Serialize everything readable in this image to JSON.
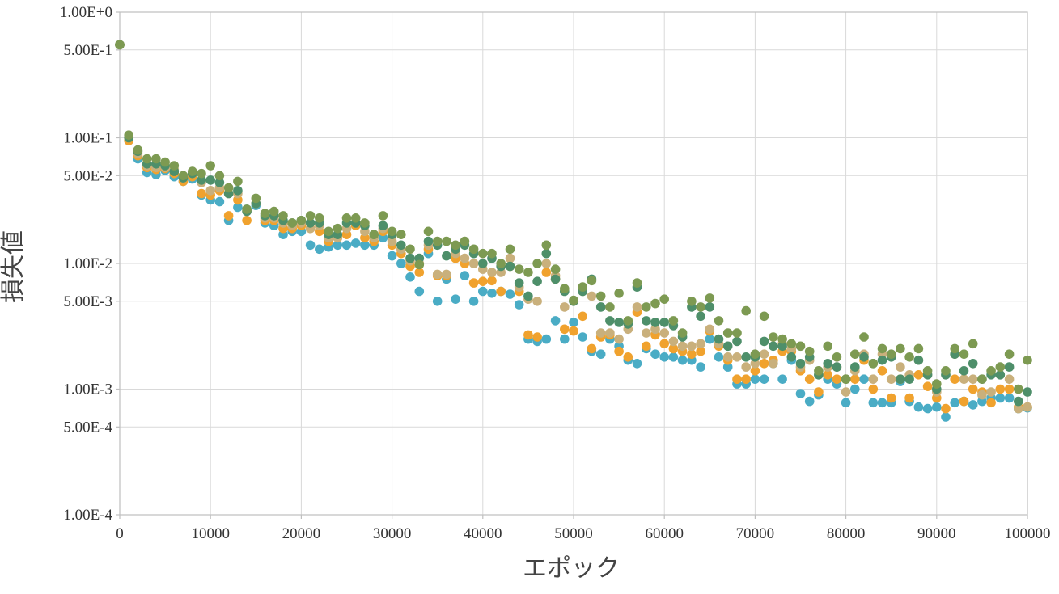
{
  "chart_data": {
    "type": "scatter",
    "title": "",
    "xlabel": "エポック",
    "ylabel": "損失値",
    "x_scale": "linear",
    "y_scale": "log",
    "xlim": [
      0,
      100000
    ],
    "ylim": [
      0.0001,
      1
    ],
    "grid": true,
    "legend": "none",
    "x_ticks": [
      0,
      10000,
      20000,
      30000,
      40000,
      50000,
      60000,
      70000,
      80000,
      90000,
      100000
    ],
    "x_tick_labels": [
      "0",
      "10000",
      "20000",
      "30000",
      "40000",
      "50000",
      "60000",
      "70000",
      "80000",
      "90000",
      "100000"
    ],
    "y_ticks": [
      1,
      0.5,
      0.1,
      0.05,
      0.01,
      0.005,
      0.001,
      0.0005,
      0.0001
    ],
    "y_tick_labels": [
      "1.00E+0",
      "5.00E-1",
      "1.00E-1",
      "5.00E-2",
      "1.00E-2",
      "5.00E-3",
      "1.00E-3",
      "5.00E-4",
      "1.00E-4"
    ],
    "series": [
      {
        "color": "#4aacc5",
        "x": [
          0,
          1000,
          2000,
          3000,
          4000,
          5000,
          6000,
          7000,
          8000,
          9000,
          10000,
          11000,
          12000,
          13000,
          14000,
          15000,
          16000,
          17000,
          18000,
          19000,
          20000,
          21000,
          22000,
          23000,
          24000,
          25000,
          26000,
          27000,
          28000,
          29000,
          30000,
          31000,
          32000,
          33000,
          34000,
          35000,
          36000,
          37000,
          38000,
          39000,
          40000,
          41000,
          42000,
          43000,
          44000,
          45000,
          46000,
          47000,
          48000,
          49000,
          50000,
          51000,
          52000,
          53000,
          54000,
          55000,
          56000,
          57000,
          58000,
          59000,
          60000,
          61000,
          62000,
          63000,
          64000,
          65000,
          66000,
          67000,
          68000,
          69000,
          70000,
          71000,
          72000,
          73000,
          74000,
          75000,
          76000,
          77000,
          78000,
          79000,
          80000,
          81000,
          82000,
          83000,
          84000,
          85000,
          86000,
          87000,
          88000,
          89000,
          90000,
          91000,
          92000,
          93000,
          94000,
          95000,
          96000,
          97000,
          98000,
          99000,
          100000
        ],
        "y": [
          0.55,
          0.095,
          0.068,
          0.053,
          0.051,
          0.055,
          0.049,
          0.045,
          0.047,
          0.035,
          0.032,
          0.031,
          0.022,
          0.028,
          0.027,
          0.029,
          0.021,
          0.02,
          0.017,
          0.018,
          0.018,
          0.014,
          0.013,
          0.0135,
          0.014,
          0.014,
          0.0145,
          0.014,
          0.014,
          0.016,
          0.0115,
          0.01,
          0.0078,
          0.006,
          0.012,
          0.005,
          0.0075,
          0.0052,
          0.008,
          0.005,
          0.006,
          0.0058,
          0.006,
          0.0057,
          0.0047,
          0.0025,
          0.0024,
          0.0025,
          0.0035,
          0.0025,
          0.0034,
          0.0026,
          0.002,
          0.0019,
          0.0025,
          0.0022,
          0.0017,
          0.0016,
          0.0021,
          0.0019,
          0.0018,
          0.0018,
          0.0017,
          0.0017,
          0.0015,
          0.0025,
          0.0018,
          0.0015,
          0.0011,
          0.0011,
          0.0012,
          0.0012,
          0.0016,
          0.0012,
          0.0017,
          0.00092,
          0.0008,
          0.0009,
          0.0012,
          0.0011,
          0.00078,
          0.001,
          0.0012,
          0.00078,
          0.00078,
          0.00078,
          0.00115,
          0.0008,
          0.00072,
          0.0007,
          0.00072,
          0.0006,
          0.00078,
          0.0008,
          0.00075,
          0.0008,
          0.00085,
          0.00085,
          0.00085,
          0.0007,
          0.00071
        ]
      },
      {
        "color": "#f0a22e",
        "x": [
          0,
          1000,
          2000,
          3000,
          4000,
          5000,
          6000,
          7000,
          8000,
          9000,
          10000,
          11000,
          12000,
          13000,
          14000,
          15000,
          16000,
          17000,
          18000,
          19000,
          20000,
          21000,
          22000,
          23000,
          24000,
          25000,
          26000,
          27000,
          28000,
          29000,
          30000,
          31000,
          32000,
          33000,
          34000,
          35000,
          36000,
          37000,
          38000,
          39000,
          40000,
          41000,
          42000,
          43000,
          44000,
          45000,
          46000,
          47000,
          48000,
          49000,
          50000,
          51000,
          52000,
          53000,
          54000,
          55000,
          56000,
          57000,
          58000,
          59000,
          60000,
          61000,
          62000,
          63000,
          64000,
          65000,
          66000,
          67000,
          68000,
          69000,
          70000,
          71000,
          72000,
          73000,
          74000,
          75000,
          76000,
          77000,
          78000,
          79000,
          80000,
          81000,
          82000,
          83000,
          84000,
          85000,
          86000,
          87000,
          88000,
          89000,
          90000,
          91000,
          92000,
          93000,
          94000,
          95000,
          96000,
          97000,
          98000,
          99000,
          100000
        ],
        "y": [
          0.55,
          0.095,
          0.072,
          0.058,
          0.056,
          0.057,
          0.052,
          0.045,
          0.049,
          0.036,
          0.035,
          0.038,
          0.024,
          0.032,
          0.022,
          0.03,
          0.022,
          0.022,
          0.019,
          0.019,
          0.02,
          0.019,
          0.018,
          0.015,
          0.016,
          0.017,
          0.02,
          0.016,
          0.015,
          0.018,
          0.014,
          0.012,
          0.0095,
          0.0085,
          0.013,
          0.008,
          0.008,
          0.011,
          0.01,
          0.007,
          0.0072,
          0.0073,
          0.006,
          0.0095,
          0.006,
          0.0027,
          0.0026,
          0.0085,
          0.0075,
          0.003,
          0.0029,
          0.0038,
          0.0021,
          0.0026,
          0.0027,
          0.002,
          0.0018,
          0.0041,
          0.0022,
          0.0027,
          0.0023,
          0.0021,
          0.002,
          0.0019,
          0.002,
          0.0029,
          0.0022,
          0.0017,
          0.0012,
          0.0012,
          0.0014,
          0.0016,
          0.0017,
          0.002,
          0.002,
          0.0014,
          0.0012,
          0.00095,
          0.0013,
          0.0012,
          0.0012,
          0.0012,
          0.0017,
          0.001,
          0.0014,
          0.00085,
          0.0012,
          0.00085,
          0.0013,
          0.00105,
          0.00085,
          0.0007,
          0.0012,
          0.0008,
          0.001,
          0.00095,
          0.00078,
          0.001,
          0.001,
          0.00072,
          0.00072
        ]
      },
      {
        "color": "#c9b07c",
        "x": [
          0,
          1000,
          2000,
          3000,
          4000,
          5000,
          6000,
          7000,
          8000,
          9000,
          10000,
          11000,
          12000,
          13000,
          14000,
          15000,
          16000,
          17000,
          18000,
          19000,
          20000,
          21000,
          22000,
          23000,
          24000,
          25000,
          26000,
          27000,
          28000,
          29000,
          30000,
          31000,
          32000,
          33000,
          34000,
          35000,
          36000,
          37000,
          38000,
          39000,
          40000,
          41000,
          42000,
          43000,
          44000,
          45000,
          46000,
          47000,
          48000,
          49000,
          50000,
          51000,
          52000,
          53000,
          54000,
          55000,
          56000,
          57000,
          58000,
          59000,
          60000,
          61000,
          62000,
          63000,
          64000,
          65000,
          66000,
          67000,
          68000,
          69000,
          70000,
          71000,
          72000,
          73000,
          74000,
          75000,
          76000,
          77000,
          78000,
          79000,
          80000,
          81000,
          82000,
          83000,
          84000,
          85000,
          86000,
          87000,
          88000,
          89000,
          90000,
          91000,
          92000,
          93000,
          94000,
          95000,
          96000,
          97000,
          98000,
          99000,
          100000
        ],
        "y": [
          0.55,
          0.1,
          0.075,
          0.06,
          0.058,
          0.058,
          0.056,
          0.048,
          0.052,
          0.044,
          0.038,
          0.04,
          0.036,
          0.036,
          0.026,
          0.03,
          0.023,
          0.023,
          0.021,
          0.02,
          0.021,
          0.019,
          0.02,
          0.016,
          0.016,
          0.019,
          0.021,
          0.018,
          0.016,
          0.019,
          0.015,
          0.013,
          0.0105,
          0.01,
          0.014,
          0.0082,
          0.0082,
          0.012,
          0.011,
          0.01,
          0.009,
          0.0085,
          0.0085,
          0.011,
          0.0065,
          0.0052,
          0.005,
          0.01,
          0.008,
          0.0045,
          0.005,
          0.006,
          0.0055,
          0.0028,
          0.0028,
          0.0025,
          0.003,
          0.0045,
          0.0028,
          0.003,
          0.0028,
          0.0024,
          0.0022,
          0.0022,
          0.0023,
          0.003,
          0.0023,
          0.0018,
          0.0018,
          0.0015,
          0.0016,
          0.0019,
          0.0016,
          0.0023,
          0.0021,
          0.0015,
          0.0017,
          0.0013,
          0.0015,
          0.0015,
          0.00095,
          0.0014,
          0.0019,
          0.0012,
          0.0019,
          0.0012,
          0.0015,
          0.0013,
          0.0017,
          0.0013,
          0.00095,
          0.0013,
          0.0019,
          0.0012,
          0.0012,
          0.0009,
          0.00095,
          0.0013,
          0.0012,
          0.0007,
          0.00072
        ]
      },
      {
        "color": "#4e8f6a",
        "x": [
          0,
          1000,
          2000,
          3000,
          4000,
          5000,
          6000,
          7000,
          8000,
          9000,
          10000,
          11000,
          12000,
          13000,
          14000,
          15000,
          16000,
          17000,
          18000,
          19000,
          20000,
          21000,
          22000,
          23000,
          24000,
          25000,
          26000,
          27000,
          28000,
          29000,
          30000,
          31000,
          32000,
          33000,
          34000,
          35000,
          36000,
          37000,
          38000,
          39000,
          40000,
          41000,
          42000,
          43000,
          44000,
          45000,
          46000,
          47000,
          48000,
          49000,
          50000,
          51000,
          52000,
          53000,
          54000,
          55000,
          56000,
          57000,
          58000,
          59000,
          60000,
          61000,
          62000,
          63000,
          64000,
          65000,
          66000,
          67000,
          68000,
          69000,
          70000,
          71000,
          72000,
          73000,
          74000,
          75000,
          76000,
          77000,
          78000,
          79000,
          80000,
          81000,
          82000,
          83000,
          84000,
          85000,
          86000,
          87000,
          88000,
          89000,
          90000,
          91000,
          92000,
          93000,
          94000,
          95000,
          96000,
          97000,
          98000,
          99000,
          100000
        ],
        "y": [
          0.55,
          0.1,
          0.078,
          0.062,
          0.062,
          0.06,
          0.054,
          0.048,
          0.052,
          0.046,
          0.046,
          0.044,
          0.036,
          0.038,
          0.026,
          0.03,
          0.024,
          0.024,
          0.022,
          0.021,
          0.022,
          0.021,
          0.021,
          0.017,
          0.017,
          0.021,
          0.021,
          0.02,
          0.017,
          0.02,
          0.017,
          0.014,
          0.011,
          0.011,
          0.015,
          0.014,
          0.0115,
          0.013,
          0.014,
          0.012,
          0.01,
          0.011,
          0.0095,
          0.0095,
          0.007,
          0.0055,
          0.0072,
          0.012,
          0.0075,
          0.006,
          0.005,
          0.006,
          0.0075,
          0.0045,
          0.0035,
          0.0034,
          0.0033,
          0.0065,
          0.0035,
          0.0034,
          0.0034,
          0.0032,
          0.0026,
          0.0045,
          0.0038,
          0.0045,
          0.0025,
          0.0022,
          0.0024,
          0.0018,
          0.0018,
          0.0024,
          0.0022,
          0.0022,
          0.0018,
          0.0016,
          0.0018,
          0.0013,
          0.0016,
          0.0015,
          0.0012,
          0.0015,
          0.0018,
          0.0016,
          0.0017,
          0.0018,
          0.0012,
          0.0012,
          0.0017,
          0.0013,
          0.001,
          0.0013,
          0.0019,
          0.0014,
          0.0016,
          0.0012,
          0.0013,
          0.0013,
          0.0015,
          0.0008,
          0.00095
        ]
      },
      {
        "color": "#7d9a52",
        "x": [
          0,
          1000,
          2000,
          3000,
          4000,
          5000,
          6000,
          7000,
          8000,
          9000,
          10000,
          11000,
          12000,
          13000,
          14000,
          15000,
          16000,
          17000,
          18000,
          19000,
          20000,
          21000,
          22000,
          23000,
          24000,
          25000,
          26000,
          27000,
          28000,
          29000,
          30000,
          31000,
          32000,
          33000,
          34000,
          35000,
          36000,
          37000,
          38000,
          39000,
          40000,
          41000,
          42000,
          43000,
          44000,
          45000,
          46000,
          47000,
          48000,
          49000,
          50000,
          51000,
          52000,
          53000,
          54000,
          55000,
          56000,
          57000,
          58000,
          59000,
          60000,
          61000,
          62000,
          63000,
          64000,
          65000,
          66000,
          67000,
          68000,
          69000,
          70000,
          71000,
          72000,
          73000,
          74000,
          75000,
          76000,
          77000,
          78000,
          79000,
          80000,
          81000,
          82000,
          83000,
          84000,
          85000,
          86000,
          87000,
          88000,
          89000,
          90000,
          91000,
          92000,
          93000,
          94000,
          95000,
          96000,
          97000,
          98000,
          99000,
          100000
        ],
        "y": [
          0.55,
          0.105,
          0.08,
          0.068,
          0.068,
          0.064,
          0.06,
          0.05,
          0.054,
          0.052,
          0.06,
          0.05,
          0.04,
          0.045,
          0.027,
          0.033,
          0.025,
          0.026,
          0.024,
          0.021,
          0.022,
          0.024,
          0.023,
          0.018,
          0.019,
          0.023,
          0.023,
          0.021,
          0.017,
          0.024,
          0.018,
          0.017,
          0.013,
          0.0098,
          0.018,
          0.015,
          0.015,
          0.014,
          0.015,
          0.013,
          0.012,
          0.012,
          0.01,
          0.013,
          0.009,
          0.0085,
          0.01,
          0.014,
          0.009,
          0.0063,
          0.0051,
          0.0065,
          0.0073,
          0.0055,
          0.0045,
          0.0058,
          0.0035,
          0.007,
          0.0045,
          0.0048,
          0.0052,
          0.0035,
          0.0028,
          0.005,
          0.0045,
          0.0053,
          0.0035,
          0.0028,
          0.0028,
          0.0042,
          0.0019,
          0.0038,
          0.0026,
          0.0025,
          0.0023,
          0.0022,
          0.002,
          0.0014,
          0.0022,
          0.0018,
          0.0012,
          0.0019,
          0.0026,
          0.0016,
          0.0021,
          0.0019,
          0.0021,
          0.0018,
          0.0021,
          0.0014,
          0.0011,
          0.0014,
          0.0021,
          0.0019,
          0.0023,
          0.0012,
          0.0014,
          0.0015,
          0.0019,
          0.001,
          0.0017
        ]
      }
    ]
  }
}
